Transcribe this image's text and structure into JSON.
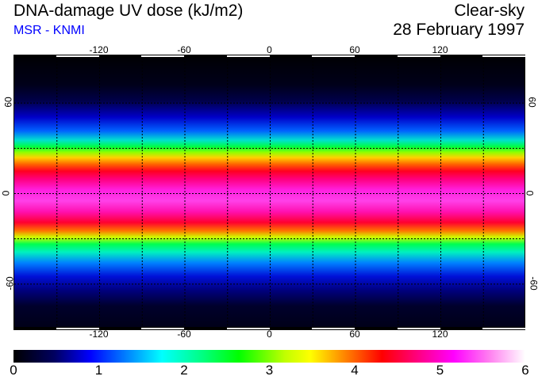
{
  "header": {
    "title": "DNA-damage UV dose (kJ/m2)",
    "source": "MSR - KNMI",
    "condition": "Clear-sky",
    "date": "28 February 1997"
  },
  "map": {
    "lon_ticks": [
      "-120",
      "-60",
      "0",
      "60",
      "120"
    ],
    "lat_ticks": [
      "60",
      "0",
      "-60"
    ],
    "lon_range": [
      -180,
      180
    ],
    "lat_range": [
      -90,
      90
    ],
    "grid_lon": [
      -150,
      -120,
      -90,
      -60,
      -30,
      0,
      30,
      60,
      90,
      120,
      150
    ],
    "grid_lat": [
      -60,
      -30,
      0,
      30,
      60
    ]
  },
  "colorbar": {
    "labels": [
      "0",
      "1",
      "2",
      "3",
      "4",
      "5",
      "6"
    ],
    "range": [
      0,
      6
    ],
    "colors": [
      "#000000",
      "#0000ff",
      "#00ffff",
      "#00ff00",
      "#ffff00",
      "#ff0000",
      "#ff00ff",
      "#ffffff"
    ]
  }
}
